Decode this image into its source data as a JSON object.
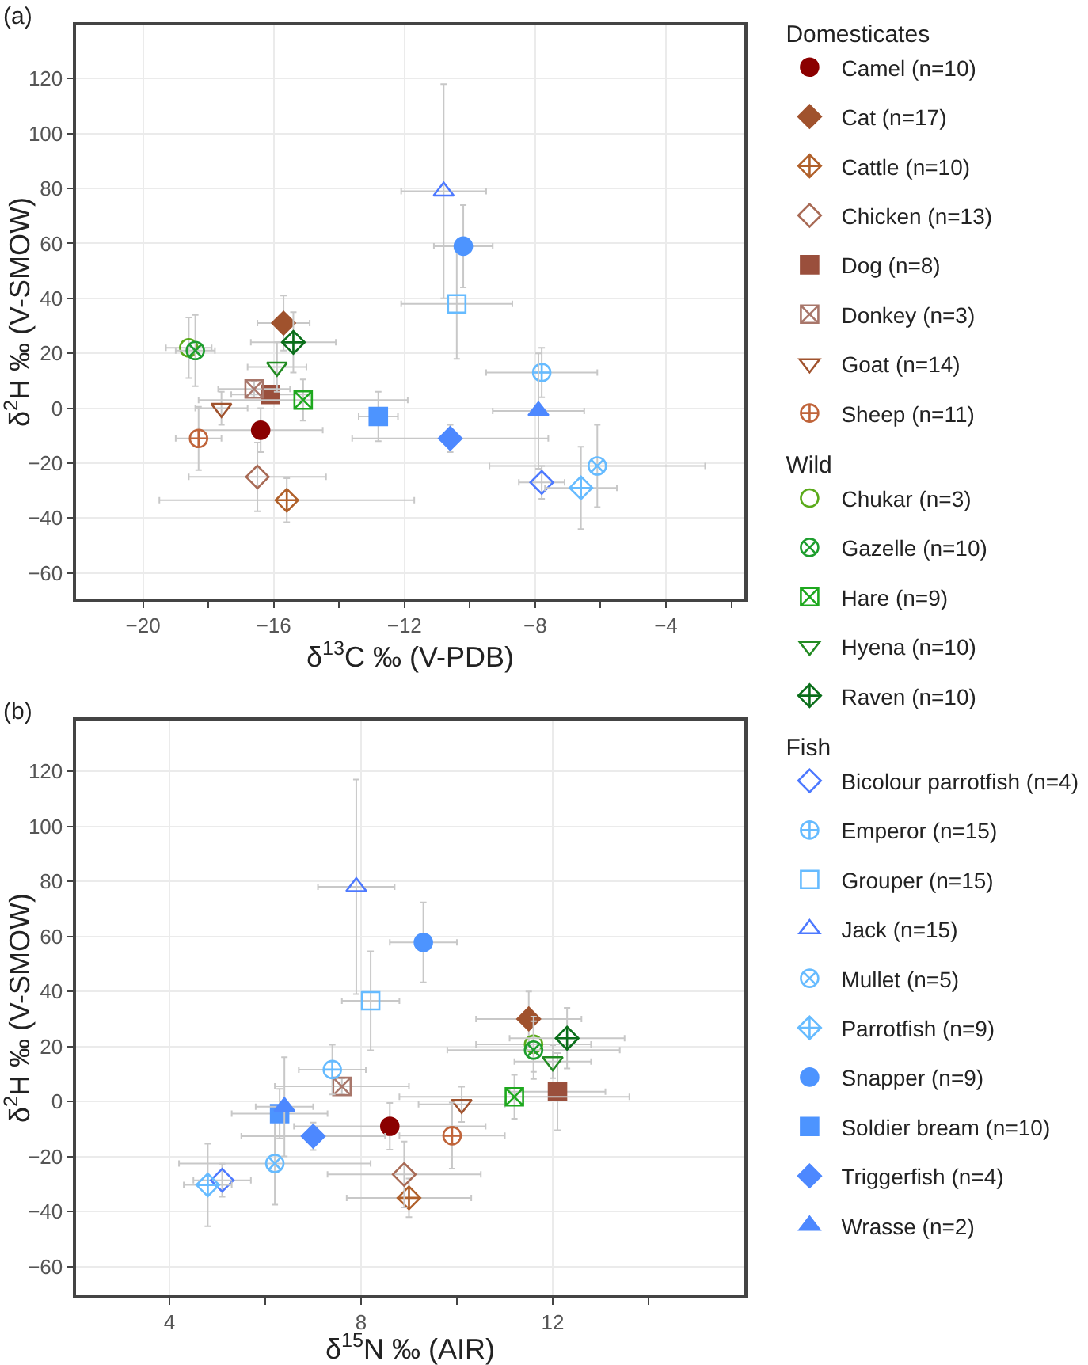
{
  "chart_data": [
    {
      "type": "scatter",
      "title": "(a)",
      "xlabel": "δ$^{13}$C ‰ (V-PDB)",
      "ylabel": "δ$^{2}$H ‰ (V-SMOW)",
      "annotations": [
        "Domesticates",
        "Wild",
        "Fish"
      ],
      "xlim": [
        -22.05,
        -1.6
      ],
      "xticks": [
        -20,
        {
          "value": -18,
          "label": null
        },
        -16,
        {
          "value": -14,
          "label": null
        },
        -12,
        {
          "value": -10,
          "label": null
        },
        -8,
        {
          "value": -6,
          "label": null
        },
        -4,
        {
          "value": -2,
          "label": null
        }
      ],
      "ylim": [
        -69.3,
        139.4
      ],
      "yticks": [
        -60,
        -40,
        -20,
        0,
        20,
        40,
        60,
        80,
        100,
        120
      ],
      "grid": true,
      "legend": "right",
      "series": [
        {
          "name": "Camel (n=10)",
          "marker": "circle",
          "color": "#8b0000",
          "x": [
            -16.4
          ],
          "values": [
            -8
          ],
          "xerrors": [
            1.9
          ],
          "errors": [
            8
          ]
        },
        {
          "name": "Cat (n=17)",
          "marker": "diamond",
          "color": "#a0522d",
          "x": [
            -15.7
          ],
          "values": [
            31
          ],
          "xerrors": [
            0.8
          ],
          "errors": [
            10
          ]
        },
        {
          "name": "Cattle (n=10)",
          "marker": "diamond-cross-open",
          "color": "#b0602a",
          "x": [
            -15.6
          ],
          "values": [
            -33.5
          ],
          "xerrors": [
            3.9
          ],
          "errors": [
            8
          ]
        },
        {
          "name": "Chicken (n=13)",
          "marker": "diamond-open",
          "color": "#a86a55",
          "x": [
            -16.5
          ],
          "values": [
            -25
          ],
          "xerrors": [
            2.1
          ],
          "errors": [
            12.5
          ]
        },
        {
          "name": "Dog (n=8)",
          "marker": "square",
          "color": "#9a4f3c",
          "x": [
            -16.1
          ],
          "values": [
            5
          ],
          "xerrors": [
            1.2
          ],
          "errors": [
            3
          ]
        },
        {
          "name": "Donkey (n=3)",
          "marker": "cross-square",
          "color": "#a8766a",
          "x": [
            -16.6
          ],
          "values": [
            7
          ],
          "xerrors": [
            1.1
          ],
          "errors": [
            3
          ]
        },
        {
          "name": "Goat (n=14)",
          "marker": "triangle-down-open",
          "color": "#a0522d",
          "x": [
            -17.6
          ],
          "values": [
            0
          ],
          "xerrors": [
            0.8
          ],
          "errors": [
            6
          ]
        },
        {
          "name": "Sheep (n=11)",
          "marker": "cross",
          "color": "#c0643a",
          "x": [
            -18.3
          ],
          "values": [
            -11
          ],
          "xerrors": [
            0.7
          ],
          "errors": [
            11.5
          ]
        },
        {
          "name": "Chukar (n=3)",
          "marker": "circle-open",
          "color": "#5aaa1a",
          "x": [
            -18.6
          ],
          "values": [
            22
          ],
          "xerrors": [
            0.7
          ],
          "errors": [
            11
          ]
        },
        {
          "name": "Gazelle (n=10)",
          "marker": "cross-x",
          "color": "#1e9e2e",
          "x": [
            -18.4
          ],
          "values": [
            21
          ],
          "xerrors": [
            0.6
          ],
          "errors": [
            13
          ]
        },
        {
          "name": "Hare (n=9)",
          "marker": "cross-square",
          "color": "#1ea81e",
          "x": [
            -15.1
          ],
          "values": [
            3
          ],
          "xerrors": [
            3.2
          ],
          "errors": [
            7.5
          ]
        },
        {
          "name": "Hyena (n=10)",
          "marker": "triangle-down-open",
          "color": "#228b22",
          "x": [
            -15.9
          ],
          "values": [
            15
          ],
          "xerrors": [
            0.9
          ],
          "errors": [
            9
          ]
        },
        {
          "name": "Raven (n=10)",
          "marker": "diamond-cross-open",
          "color": "#0a6e1a",
          "x": [
            -15.4
          ],
          "values": [
            24
          ],
          "xerrors": [
            1.3
          ],
          "errors": [
            11
          ]
        },
        {
          "name": "Bicolour parrotfish (n=4)",
          "marker": "diamond-open",
          "color": "#4d79ff",
          "x": [
            -7.8
          ],
          "values": [
            -27
          ],
          "xerrors": [
            0.7
          ],
          "errors": [
            6
          ]
        },
        {
          "name": "Emperor (n=15)",
          "marker": "cross",
          "color": "#66bbff",
          "x": [
            -7.8
          ],
          "values": [
            13
          ],
          "xerrors": [
            1.7
          ],
          "errors": [
            9
          ]
        },
        {
          "name": "Grouper (n=15)",
          "marker": "square-open",
          "color": "#66bbff",
          "x": [
            -10.4
          ],
          "values": [
            38
          ],
          "xerrors": [
            1.7
          ],
          "errors": [
            20
          ]
        },
        {
          "name": "Jack (n=15)",
          "marker": "triangle-up-open",
          "color": "#4d79ff",
          "x": [
            -10.8
          ],
          "values": [
            79
          ],
          "xerrors": [
            1.3
          ],
          "errors": [
            39
          ]
        },
        {
          "name": "Mullet (n=5)",
          "marker": "cross-x",
          "color": "#66bbff",
          "x": [
            -6.1
          ],
          "values": [
            -21
          ],
          "xerrors": [
            3.3
          ],
          "errors": [
            15
          ]
        },
        {
          "name": "Parrotfish (n=9)",
          "marker": "diamond-cross-open",
          "color": "#66bbff",
          "x": [
            -6.6
          ],
          "values": [
            -29
          ],
          "xerrors": [
            1.1
          ],
          "errors": [
            15
          ]
        },
        {
          "name": "Snapper (n=9)",
          "marker": "circle",
          "color": "#4d94ff",
          "x": [
            -10.2
          ],
          "values": [
            59
          ],
          "xerrors": [
            0.9
          ],
          "errors": [
            15
          ]
        },
        {
          "name": "Soldier bream (n=10)",
          "marker": "square",
          "color": "#4d94ff",
          "x": [
            -12.8
          ],
          "values": [
            -3
          ],
          "xerrors": [
            0.6
          ],
          "errors": [
            9
          ]
        },
        {
          "name": "Triggerfish (n=4)",
          "marker": "diamond",
          "color": "#4d88ff",
          "x": [
            -10.6
          ],
          "values": [
            -11
          ],
          "xerrors": [
            3.0
          ],
          "errors": [
            5
          ]
        },
        {
          "name": "Wrasse (n=2)",
          "marker": "triangle-up",
          "color": "#4d88ff",
          "x": [
            -7.9
          ],
          "values": [
            -1
          ],
          "xerrors": [
            1.4
          ],
          "errors": [
            21
          ]
        }
      ]
    },
    {
      "type": "scatter",
      "title": "(b)",
      "xlabel": "δ$^{15}$N ‰ (AIR)",
      "ylabel": "δ$^{2}$H ‰ (V-SMOW)",
      "xlim": [
        2.05,
        16.0
      ],
      "xticks": [
        4,
        {
          "value": 6,
          "label": null
        },
        8,
        {
          "value": 10,
          "label": null
        },
        12,
        {
          "value": 14,
          "label": null
        }
      ],
      "ylim": [
        -70.4,
        138.4
      ],
      "yticks": [
        -60,
        -40,
        -20,
        0,
        20,
        40,
        60,
        80,
        100,
        120
      ],
      "grid": true,
      "series": [
        {
          "marker": "circle",
          "color": "#8b0000",
          "x": [
            8.6
          ],
          "values": [
            -9
          ],
          "xerrors": [
            2.0
          ],
          "errors": [
            8.5
          ]
        },
        {
          "marker": "diamond",
          "color": "#a0522d",
          "x": [
            11.5
          ],
          "values": [
            30
          ],
          "xerrors": [
            1.1
          ],
          "errors": [
            10
          ]
        },
        {
          "marker": "diamond-cross-open",
          "color": "#b0602a",
          "x": [
            9.0
          ],
          "values": [
            -35
          ],
          "xerrors": [
            1.3
          ],
          "errors": [
            7
          ]
        },
        {
          "marker": "diamond-open",
          "color": "#a86a55",
          "x": [
            8.9
          ],
          "values": [
            -26.5
          ],
          "xerrors": [
            1.6
          ],
          "errors": [
            12
          ]
        },
        {
          "marker": "square",
          "color": "#9a4f3c",
          "x": [
            12.1
          ],
          "values": [
            3.6
          ],
          "xerrors": [
            1.0
          ],
          "errors": [
            14
          ]
        },
        {
          "marker": "cross-square",
          "color": "#a8766a",
          "x": [
            7.6
          ],
          "values": [
            5.5
          ],
          "xerrors": [
            1.4
          ],
          "errors": [
            3
          ]
        },
        {
          "marker": "triangle-down-open",
          "color": "#a0522d",
          "x": [
            10.1
          ],
          "values": [
            -1
          ],
          "xerrors": [
            0.9
          ],
          "errors": [
            6.4
          ]
        },
        {
          "marker": "cross",
          "color": "#c0643a",
          "x": [
            9.9
          ],
          "values": [
            -12.4
          ],
          "xerrors": [
            1.1
          ],
          "errors": [
            12
          ]
        },
        {
          "marker": "circle-open",
          "color": "#5aaa1a",
          "x": [
            11.6
          ],
          "values": [
            20.8
          ],
          "xerrors": [
            1.2
          ],
          "errors": [
            10
          ]
        },
        {
          "marker": "cross-x",
          "color": "#1e9e2e",
          "x": [
            11.6
          ],
          "values": [
            18.7
          ],
          "xerrors": [
            1.8
          ],
          "errors": [
            10.5
          ]
        },
        {
          "marker": "cross-square",
          "color": "#1ea81e",
          "x": [
            11.2
          ],
          "values": [
            1.7
          ],
          "xerrors": [
            2.4
          ],
          "errors": [
            8
          ]
        },
        {
          "marker": "triangle-down-open",
          "color": "#228b22",
          "x": [
            12.0
          ],
          "values": [
            14.5
          ],
          "xerrors": [
            0.8
          ],
          "errors": [
            6
          ]
        },
        {
          "marker": "diamond-cross-open",
          "color": "#0a6e1a",
          "x": [
            12.3
          ],
          "values": [
            23
          ],
          "xerrors": [
            1.2
          ],
          "errors": [
            11
          ]
        },
        {
          "marker": "diamond-open",
          "color": "#4d79ff",
          "x": [
            5.1
          ],
          "values": [
            -28.6
          ],
          "xerrors": [
            0.6
          ],
          "errors": [
            6
          ]
        },
        {
          "marker": "cross",
          "color": "#66bbff",
          "x": [
            7.4
          ],
          "values": [
            11.6
          ],
          "xerrors": [
            0.7
          ],
          "errors": [
            9
          ]
        },
        {
          "marker": "square-open",
          "color": "#66bbff",
          "x": [
            8.2
          ],
          "values": [
            36.6
          ],
          "xerrors": [
            0.6
          ],
          "errors": [
            18
          ]
        },
        {
          "marker": "triangle-up-open",
          "color": "#4d79ff",
          "x": [
            7.9
          ],
          "values": [
            78
          ],
          "xerrors": [
            0.8
          ],
          "errors": [
            39
          ]
        },
        {
          "marker": "cross-x",
          "color": "#66bbff",
          "x": [
            6.2
          ],
          "values": [
            -22.5
          ],
          "xerrors": [
            2.0
          ],
          "errors": [
            15
          ]
        },
        {
          "marker": "diamond-cross-open",
          "color": "#66bbff",
          "x": [
            4.8
          ],
          "values": [
            -30.3
          ],
          "xerrors": [
            0.5
          ],
          "errors": [
            15
          ]
        },
        {
          "marker": "circle",
          "color": "#4d94ff",
          "x": [
            9.3
          ],
          "values": [
            57.8
          ],
          "xerrors": [
            0.7
          ],
          "errors": [
            14.5
          ]
        },
        {
          "marker": "square",
          "color": "#4d94ff",
          "x": [
            6.3
          ],
          "values": [
            -4.4
          ],
          "xerrors": [
            1.0
          ],
          "errors": [
            9
          ]
        },
        {
          "marker": "diamond",
          "color": "#4d88ff",
          "x": [
            7.0
          ],
          "values": [
            -12.6
          ],
          "xerrors": [
            1.5
          ],
          "errors": [
            5
          ]
        },
        {
          "marker": "triangle-up",
          "color": "#4d88ff",
          "x": [
            6.4
          ],
          "values": [
            -1.9
          ],
          "xerrors": [
            0.6
          ],
          "errors": [
            18
          ]
        }
      ]
    }
  ]
}
